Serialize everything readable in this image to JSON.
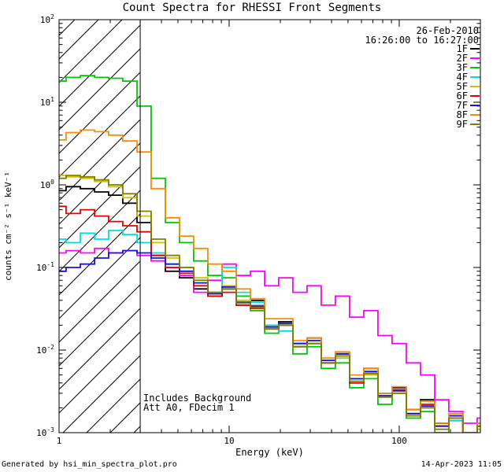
{
  "title": "Count Spectra for RHESSI Front Segments",
  "annotations": {
    "date": "26-Feb-2010",
    "time_range": "16:26:00 to 16:27:00",
    "background_note": "Includes Background",
    "attenuator_note": "Att A0, FDecim 1"
  },
  "footer": {
    "left": "Generated by hsi_min_spectra_plot.pro",
    "right": "14-Apr-2023 11:05"
  },
  "chart_data": {
    "type": "line",
    "mode": "histogram-step",
    "title": "Count Spectra for RHESSI Front Segments",
    "legend_position": "top-right",
    "grid": false,
    "x_axis": {
      "label": "Energy (keV)",
      "scale": "log",
      "range": [
        1,
        300
      ],
      "major_ticks": [
        1,
        10,
        100
      ],
      "tick_labels": [
        "1",
        "10",
        "100"
      ]
    },
    "y_axis": {
      "label": "counts cm⁻² s⁻¹ keV⁻¹",
      "scale": "log",
      "range": [
        0.001,
        100
      ],
      "major_ticks": [
        100,
        10,
        1,
        0.1,
        0.01,
        0.001
      ],
      "tick_labels": [
        "10²",
        "10¹",
        "10⁰",
        "10⁻¹",
        "10⁻²",
        "10⁻³"
      ],
      "tick_exponents": [
        "2",
        "1",
        "0",
        "-1",
        "-2",
        "-3"
      ]
    },
    "hatched_region": {
      "x_start": 1,
      "x_end": 3,
      "style": "diagonal-hatch"
    },
    "x": [
      1.0,
      1.21,
      1.47,
      1.78,
      2.15,
      2.61,
      3.16,
      3.83,
      4.64,
      5.62,
      6.81,
      8.25,
      10.0,
      12.1,
      14.7,
      17.8,
      21.5,
      26.1,
      31.6,
      38.3,
      46.4,
      56.2,
      68.1,
      82.5,
      100,
      121,
      147,
      178,
      215,
      261,
      316
    ],
    "series": [
      {
        "name": "1F",
        "color": "#000000",
        "values": [
          0.85,
          0.95,
          0.9,
          0.82,
          0.75,
          0.6,
          0.35,
          0.14,
          0.09,
          0.075,
          0.055,
          0.045,
          0.055,
          0.035,
          0.04,
          0.02,
          0.022,
          0.012,
          0.014,
          0.007,
          0.009,
          0.0045,
          0.006,
          0.003,
          0.0035,
          0.0019,
          0.0025,
          0.0013,
          0.0016,
          0.001,
          0.0012
        ]
      },
      {
        "name": "2F",
        "color": "#ff00ff",
        "values": [
          0.15,
          0.16,
          0.15,
          0.17,
          0.15,
          0.16,
          0.14,
          0.12,
          0.1,
          0.08,
          0.05,
          0.07,
          0.11,
          0.08,
          0.09,
          0.06,
          0.075,
          0.05,
          0.06,
          0.035,
          0.045,
          0.025,
          0.03,
          0.015,
          0.012,
          0.007,
          0.005,
          0.0025,
          0.0018,
          0.0013,
          0.0015
        ]
      },
      {
        "name": "3F",
        "color": "#00c800",
        "values": [
          18,
          20,
          21,
          20,
          19.5,
          18,
          9,
          1.2,
          0.35,
          0.2,
          0.12,
          0.08,
          0.075,
          0.045,
          0.03,
          0.016,
          0.02,
          0.009,
          0.011,
          0.006,
          0.007,
          0.0035,
          0.0045,
          0.0022,
          0.003,
          0.0015,
          0.0018,
          0.001,
          0.0014,
          0.0009,
          0.0011
        ]
      },
      {
        "name": "4F",
        "color": "#00dede",
        "values": [
          0.22,
          0.2,
          0.26,
          0.22,
          0.28,
          0.25,
          0.2,
          0.15,
          0.11,
          0.09,
          0.065,
          0.05,
          0.1,
          0.05,
          0.038,
          0.02,
          0.017,
          0.011,
          0.012,
          0.0075,
          0.008,
          0.0045,
          0.005,
          0.003,
          0.0032,
          0.0017,
          0.002,
          0.0012,
          0.0014,
          0.0009,
          0.0012
        ]
      },
      {
        "name": "5F",
        "color": "#d2c000",
        "values": [
          1.3,
          1.25,
          1.2,
          1.1,
          0.95,
          0.7,
          0.42,
          0.2,
          0.13,
          0.1,
          0.075,
          0.05,
          0.06,
          0.04,
          0.035,
          0.019,
          0.021,
          0.012,
          0.013,
          0.0075,
          0.008,
          0.0042,
          0.005,
          0.0028,
          0.003,
          0.0016,
          0.002,
          0.0012,
          0.0015,
          0.001,
          0.0011
        ]
      },
      {
        "name": "6F",
        "color": "#e60000",
        "values": [
          0.55,
          0.45,
          0.5,
          0.42,
          0.36,
          0.32,
          0.27,
          0.14,
          0.1,
          0.085,
          0.06,
          0.045,
          0.05,
          0.035,
          0.032,
          0.018,
          0.02,
          0.011,
          0.012,
          0.007,
          0.0085,
          0.004,
          0.0055,
          0.0027,
          0.0032,
          0.0017,
          0.0022,
          0.0012,
          0.0015,
          0.0009,
          0.0012
        ]
      },
      {
        "name": "7F",
        "color": "#1414e6",
        "values": [
          0.09,
          0.1,
          0.11,
          0.13,
          0.15,
          0.16,
          0.15,
          0.13,
          0.11,
          0.09,
          0.065,
          0.048,
          0.058,
          0.038,
          0.034,
          0.019,
          0.021,
          0.012,
          0.013,
          0.0075,
          0.009,
          0.0045,
          0.0055,
          0.0028,
          0.0033,
          0.0017,
          0.0021,
          0.0012,
          0.0016,
          0.001,
          0.0013
        ]
      },
      {
        "name": "8F",
        "color": "#ff8c00",
        "values": [
          3.5,
          4.3,
          4.6,
          4.4,
          4.0,
          3.4,
          2.5,
          0.9,
          0.4,
          0.24,
          0.17,
          0.11,
          0.09,
          0.055,
          0.042,
          0.024,
          0.024,
          0.013,
          0.014,
          0.008,
          0.0095,
          0.005,
          0.006,
          0.003,
          0.0036,
          0.0019,
          0.0024,
          0.0013,
          0.0017,
          0.001,
          0.0013
        ]
      },
      {
        "name": "9F",
        "color": "#808000",
        "values": [
          1.2,
          1.3,
          1.25,
          1.15,
          1.0,
          0.78,
          0.48,
          0.22,
          0.14,
          0.1,
          0.07,
          0.05,
          0.055,
          0.037,
          0.033,
          0.018,
          0.02,
          0.011,
          0.012,
          0.007,
          0.0085,
          0.0042,
          0.0052,
          0.0027,
          0.003,
          0.0016,
          0.002,
          0.0011,
          0.0015,
          0.0009,
          0.0012
        ]
      }
    ]
  }
}
